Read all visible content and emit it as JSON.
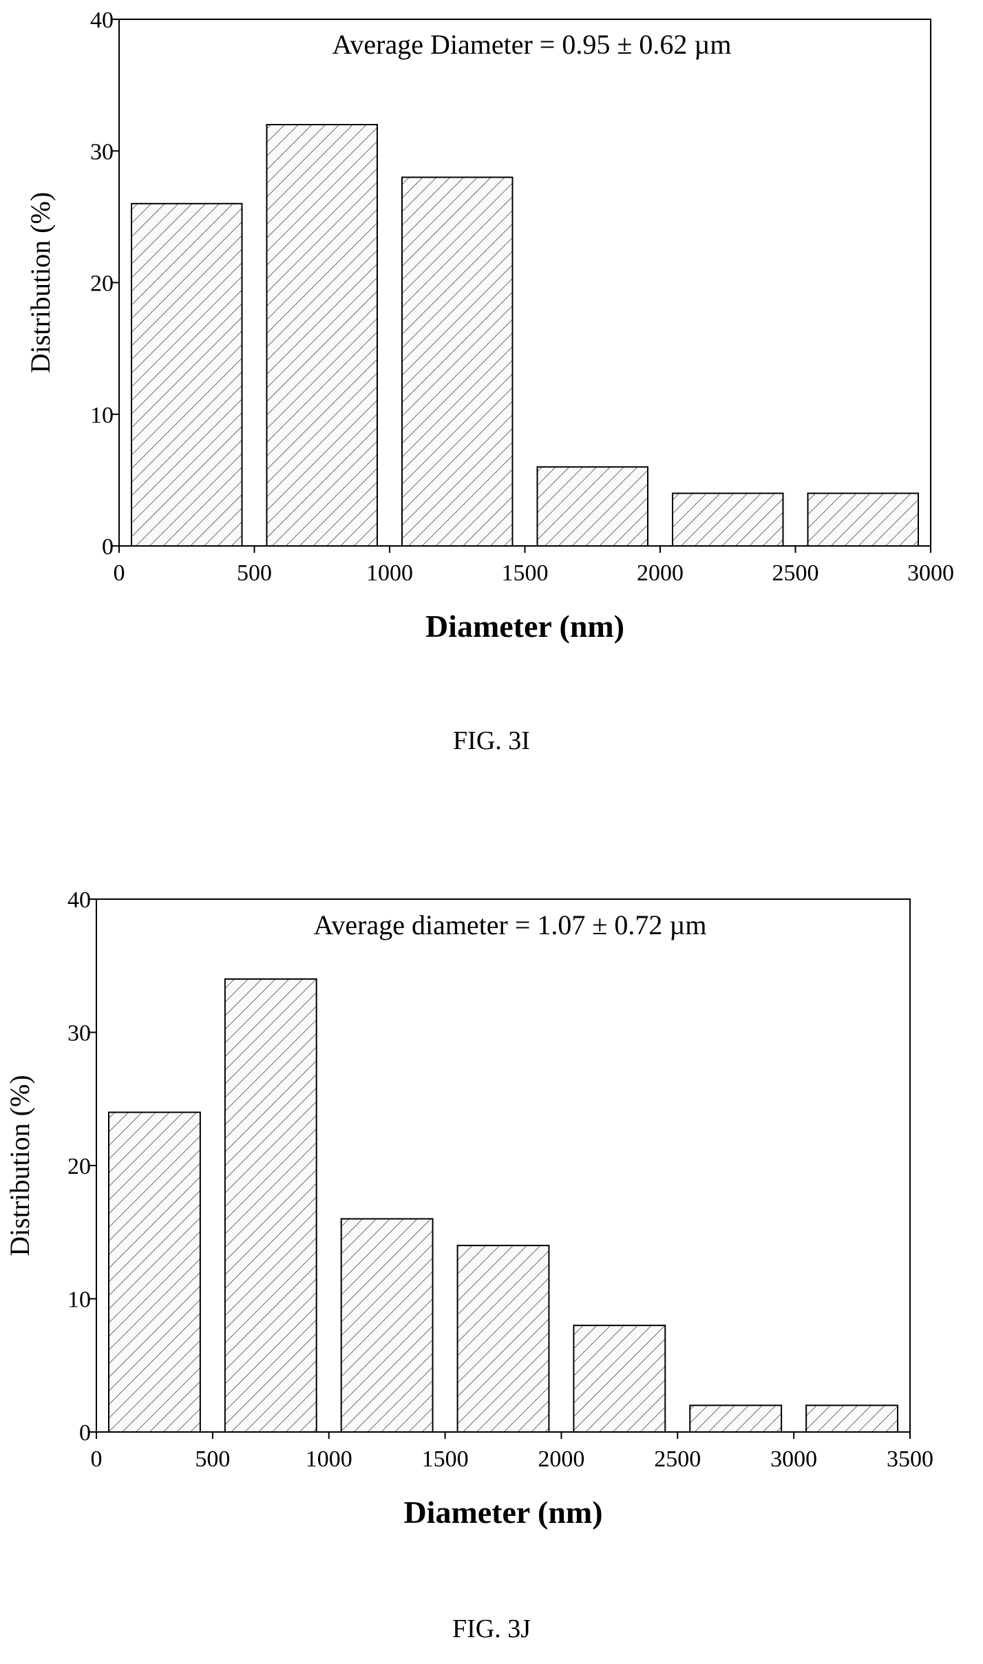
{
  "chart_data": [
    {
      "type": "bar",
      "caption": "FIG. 3I",
      "annotation": "Average Diameter = 0.95 ± 0.62 µm",
      "xlabel": "Diameter (nm)",
      "ylabel": "Distribution (%)",
      "xlim": [
        0,
        3000
      ],
      "ylim": [
        0,
        40
      ],
      "xticks": [
        0,
        500,
        1000,
        1500,
        2000,
        2500,
        3000
      ],
      "yticks": [
        0,
        10,
        20,
        30,
        40
      ],
      "bins": [
        [
          0,
          500
        ],
        [
          500,
          1000
        ],
        [
          1000,
          1500
        ],
        [
          1500,
          2000
        ],
        [
          2000,
          2500
        ],
        [
          2500,
          3000
        ]
      ],
      "values": [
        26,
        32,
        28,
        6,
        4,
        4
      ],
      "grid": false,
      "fill": "diagonal-hatch"
    },
    {
      "type": "bar",
      "caption": "FIG. 3J",
      "annotation": "Average diameter = 1.07 ± 0.72 µm",
      "xlabel": "Diameter (nm)",
      "ylabel": "Distribution (%)",
      "xlim": [
        0,
        3500
      ],
      "ylim": [
        0,
        40
      ],
      "xticks": [
        0,
        500,
        1000,
        1500,
        2000,
        2500,
        3000,
        3500
      ],
      "yticks": [
        0,
        10,
        20,
        30,
        40
      ],
      "bins": [
        [
          0,
          500
        ],
        [
          500,
          1000
        ],
        [
          1000,
          1500
        ],
        [
          1500,
          2000
        ],
        [
          2000,
          2500
        ],
        [
          2500,
          3000
        ],
        [
          3000,
          3500
        ]
      ],
      "values": [
        24,
        34,
        16,
        14,
        8,
        2,
        2
      ],
      "grid": false,
      "fill": "diagonal-hatch"
    }
  ]
}
